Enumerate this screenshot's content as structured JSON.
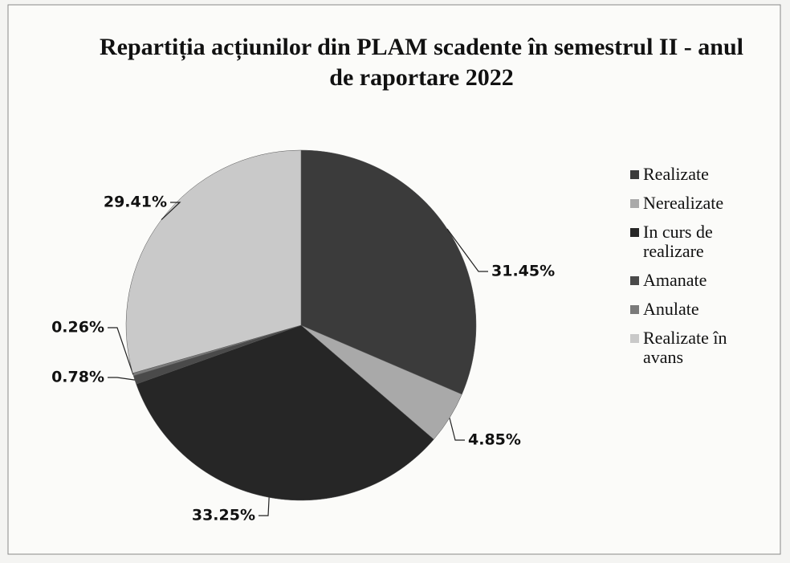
{
  "chart_data": {
    "type": "pie",
    "title": "Repartiția acțiunilor din PLAM scadente în semestrul II - anul de raportare 2022",
    "categories": [
      "Realizate",
      "Nerealizate",
      "In curs de realizare",
      "Amanate",
      "Anulate",
      "Realizate în avans"
    ],
    "values": [
      31.45,
      4.85,
      33.25,
      0.78,
      0.26,
      29.41
    ],
    "value_labels": [
      "31.45%",
      "4.85%",
      "33.25%",
      "0.78%",
      "0.26%",
      "29.41%"
    ],
    "colors": [
      "#3b3b3b",
      "#a9a9a9",
      "#262626",
      "#4a4a4a",
      "#7a7a7a",
      "#c9c9c9"
    ],
    "legend": "right"
  }
}
